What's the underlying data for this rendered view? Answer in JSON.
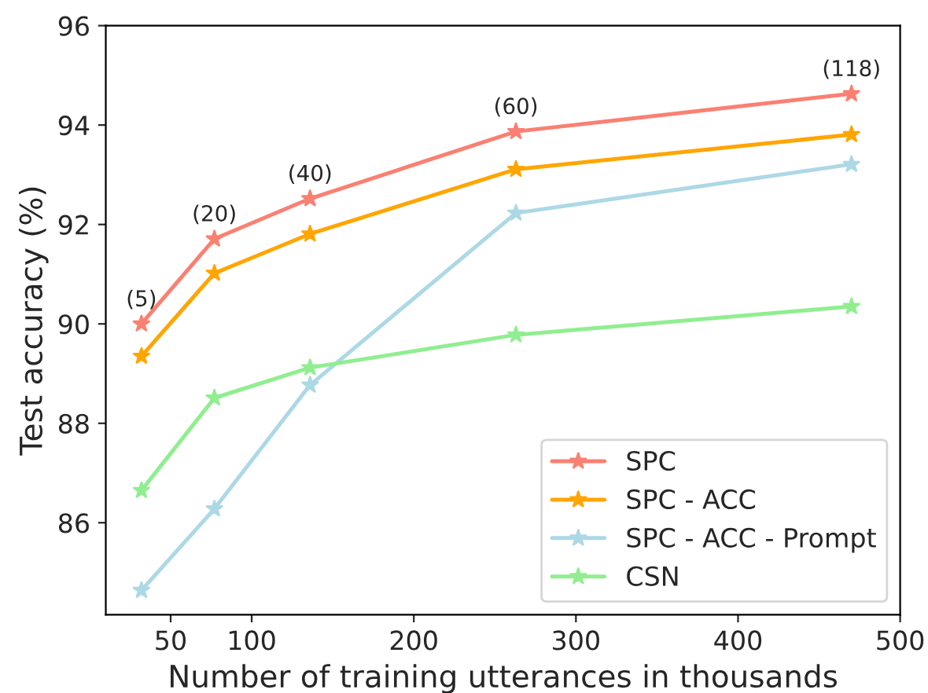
{
  "chart_data": {
    "type": "line",
    "xlabel": "Number of training utterances in thousands",
    "ylabel": "Test accuracy (%)",
    "x": [
      32,
      77,
      136,
      263,
      470
    ],
    "series": [
      {
        "name": "SPC",
        "color": "#fa8072",
        "values": [
          90.0,
          91.71,
          92.52,
          93.87,
          94.63
        ]
      },
      {
        "name": "SPC - ACC",
        "color": "#ffa500",
        "values": [
          89.35,
          91.02,
          91.81,
          93.11,
          93.81
        ]
      },
      {
        "name": "SPC - ACC - Prompt",
        "color": "#add8e6",
        "values": [
          84.64,
          86.28,
          88.77,
          92.23,
          93.21
        ]
      },
      {
        "name": "CSN",
        "color": "#90ee90",
        "values": [
          86.65,
          88.51,
          89.12,
          89.78,
          90.35
        ]
      }
    ],
    "annotations": [
      {
        "text": "(5)",
        "x": 32,
        "y": 90.0
      },
      {
        "text": "(20)",
        "x": 77,
        "y": 91.71
      },
      {
        "text": "(40)",
        "x": 136,
        "y": 92.52
      },
      {
        "text": "(60)",
        "x": 263,
        "y": 93.87
      },
      {
        "text": "(118)",
        "x": 470,
        "y": 94.63
      }
    ],
    "xlim": [
      10,
      500
    ],
    "xticks": [
      50,
      100,
      200,
      300,
      400,
      500
    ],
    "ylim": [
      84.15,
      96
    ],
    "yticks": [
      86,
      88,
      90,
      92,
      94,
      96
    ],
    "grid": false,
    "legend": "bottom right",
    "marker": "star",
    "line_style": "solid"
  }
}
